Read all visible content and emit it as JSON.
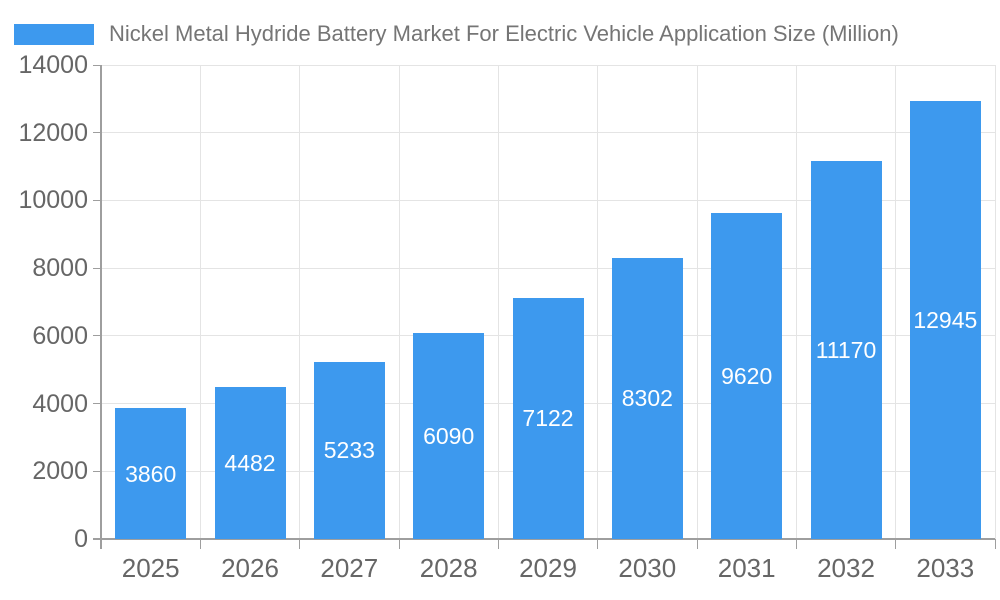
{
  "title": "Nickel Metal Hydride Battery Market For Electric Vehicle Application Size (Million)",
  "legend": {
    "swatch_icon": "series-color-swatch",
    "label": "Nickel Metal Hydride Battery Market For Electric Vehicle Application Size (Million)"
  },
  "colors": {
    "bar": "#3D99EE",
    "title_text": "#757575",
    "tick_label": "#666666",
    "axis_line": "#9E9E9E",
    "gridline": "#E4E4E4",
    "bar_label": "#FFFFFF",
    "background": "#FFFFFF"
  },
  "chart_data": {
    "type": "bar",
    "title": "Nickel Metal Hydride Battery Market For Electric Vehicle Application Size (Million)",
    "categories": [
      "2025",
      "2026",
      "2027",
      "2028",
      "2029",
      "2030",
      "2031",
      "2032",
      "2033"
    ],
    "series": [
      {
        "name": "Nickel Metal Hydride Battery Market For Electric Vehicle Application Size (Million)",
        "values": [
          3860,
          4482,
          5233,
          6090,
          7122,
          8302,
          9620,
          11170,
          12945
        ]
      }
    ],
    "xlabel": "",
    "ylabel": "",
    "ylim": [
      0,
      14000
    ],
    "ytick_step": 2000,
    "ytick_labels": [
      "0",
      "2000",
      "4000",
      "6000",
      "8000",
      "10000",
      "12000",
      "14000"
    ],
    "grid": "both",
    "legend_position": "top-left",
    "bar_value_labels": "inside-center-white"
  }
}
